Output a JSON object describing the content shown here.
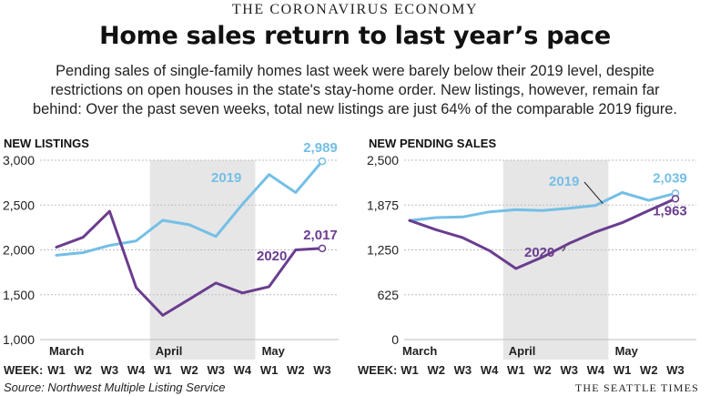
{
  "kicker": "THE CORONAVIRUS ECONOMY",
  "headline": "Home sales return to last year’s pace",
  "summary_lines": [
    "Pending sales of single-family homes last week were barely below their 2019 level, despite",
    "restrictions on open houses in the state's stay-home order. New listings, however, remain far",
    "behind: Over the past seven weeks, total new listings are just 64% of the comparable 2019 figure."
  ],
  "source": "Source: Northwest Multiple Listing Service",
  "credit": "THE SEATTLE TIMES",
  "colors": {
    "series_2019": "#74bfe6",
    "series_2020": "#6a3d8f",
    "shade": "#e6e6e6",
    "grid": "#bdbdbd"
  },
  "chart_data": [
    {
      "type": "line",
      "title": "NEW LISTINGS",
      "x_prefix": "WEEK:",
      "categories": [
        "W1",
        "W2",
        "W3",
        "W4",
        "W1",
        "W2",
        "W3",
        "W4",
        "W1",
        "W2",
        "W3"
      ],
      "months": [
        {
          "label": "March",
          "index": 0
        },
        {
          "label": "April",
          "index": 4
        },
        {
          "label": "May",
          "index": 8
        }
      ],
      "shaded_range": [
        4,
        7
      ],
      "ylim": [
        1000,
        3000
      ],
      "yticks": [
        1000,
        1500,
        2000,
        2500,
        3000
      ],
      "ytick_labels": [
        "1,000",
        "1,500",
        "2,000",
        "2,500",
        "3,000"
      ],
      "series": [
        {
          "name": "2019",
          "color": "#74bfe6",
          "values": [
            1940,
            1970,
            2050,
            2100,
            2330,
            2280,
            2150,
            2510,
            2840,
            2640,
            2989
          ],
          "end_label": "2,989"
        },
        {
          "name": "2020",
          "color": "#6a3d8f",
          "values": [
            2030,
            2140,
            2430,
            1580,
            1270,
            1450,
            1630,
            1520,
            1590,
            2000,
            2017
          ],
          "end_label": "2,017"
        }
      ]
    },
    {
      "type": "line",
      "title": "NEW PENDING SALES",
      "x_prefix": "WEEK:",
      "categories": [
        "W1",
        "W2",
        "W3",
        "W4",
        "W1",
        "W2",
        "W3",
        "W4",
        "W1",
        "W2",
        "W3"
      ],
      "months": [
        {
          "label": "March",
          "index": 0
        },
        {
          "label": "April",
          "index": 4
        },
        {
          "label": "May",
          "index": 8
        }
      ],
      "shaded_range": [
        4,
        7
      ],
      "ylim": [
        0,
        2500
      ],
      "yticks": [
        0,
        625,
        1250,
        1875,
        2500
      ],
      "ytick_labels": [
        "0",
        "625",
        "1,250",
        "1,875",
        "2,500"
      ],
      "series": [
        {
          "name": "2019",
          "color": "#74bfe6",
          "values": [
            1660,
            1700,
            1710,
            1780,
            1810,
            1800,
            1830,
            1870,
            2050,
            1940,
            2039
          ],
          "end_label": "2,039"
        },
        {
          "name": "2020",
          "color": "#6a3d8f",
          "values": [
            1660,
            1530,
            1420,
            1240,
            990,
            1150,
            1340,
            1500,
            1630,
            1800,
            1963
          ],
          "end_label": "1,963"
        }
      ]
    }
  ]
}
